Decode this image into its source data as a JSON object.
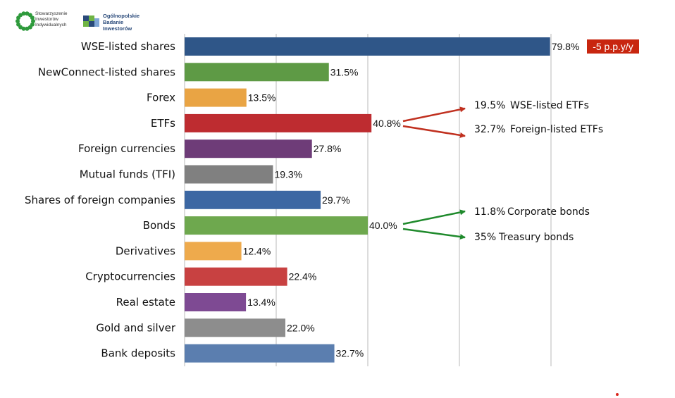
{
  "logos": {
    "left": {
      "lines": [
        "Stowarzyszenie",
        "Inwestorów",
        "Indywidualnych"
      ],
      "color": "#2e9a3c"
    },
    "right": {
      "lines": [
        "Ogólnopolskie",
        "Badanie",
        "Inwestorów"
      ],
      "color": "#2a4a7a"
    }
  },
  "chart_data": {
    "type": "bar",
    "orientation": "horizontal",
    "categories": [
      "WSE-listed shares",
      "NewConnect-listed shares",
      "Forex",
      "ETFs",
      "Foreign currencies",
      "Mutual funds (TFI)",
      "Shares of foreign companies",
      "Bonds",
      "Derivatives",
      "Cryptocurrencies",
      "Real estate",
      "Gold and silver",
      "Bank deposits"
    ],
    "values": [
      79.8,
      31.5,
      13.5,
      40.8,
      27.8,
      19.3,
      29.7,
      40.0,
      12.4,
      22.4,
      13.4,
      22.0,
      32.7
    ],
    "value_labels": [
      "79.8%",
      "31.5%",
      "13.5%",
      "40.8%",
      "27.8%",
      "19.3%",
      "29.7%",
      "40.0%",
      "12.4%",
      "22.4%",
      "13.4%",
      "22.0%",
      "32.7%"
    ],
    "bar_colors": [
      "#2f5688",
      "#5e9a45",
      "#e9a444",
      "#be2c30",
      "#6e3c78",
      "#808080",
      "#3c67a3",
      "#6ea84e",
      "#eeaa4c",
      "#c84141",
      "#7e4a93",
      "#8d8d8d",
      "#5b7eaf"
    ],
    "xlim": [
      0,
      80
    ],
    "grid": true,
    "title": "",
    "xlabel": "",
    "ylabel": "",
    "annotations": [
      {
        "attach_to": "WSE-listed shares",
        "text": "-5 p.p.y/y",
        "style": "badge",
        "color": "#c8260f"
      },
      {
        "attach_to": "ETFs",
        "text_value": "19.5%",
        "text_label": "WSE-listed ETFs",
        "arrow_color": "#c0301f"
      },
      {
        "attach_to": "ETFs",
        "text_value": "32.7%",
        "text_label": "Foreign-listed ETFs",
        "arrow_color": "#c0301f"
      },
      {
        "attach_to": "Bonds",
        "text_value": "11.8%",
        "text_label": "Corporate bonds",
        "arrow_color": "#1f8a2c"
      },
      {
        "attach_to": "Bonds",
        "text_value": "35%",
        "text_label": "Treasury bonds",
        "arrow_color": "#1f8a2c"
      }
    ]
  }
}
